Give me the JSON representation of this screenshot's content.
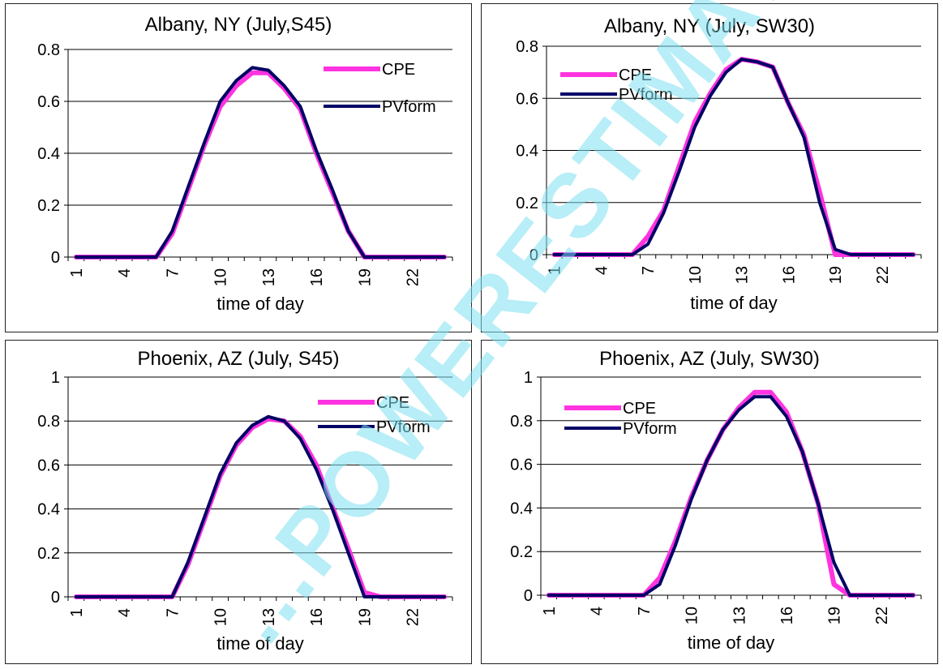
{
  "colors": {
    "cpe": "#ff33e0",
    "pvform": "#000066",
    "background": "#ffffff",
    "watermark": "#7ee0f0"
  },
  "watermark": {
    "text": "...POWERESTIMATOR"
  },
  "chart_data": [
    {
      "type": "line",
      "title": "Albany, NY (July,S45)",
      "xlabel": "time of day",
      "ylabel": "",
      "x": [
        1,
        2,
        3,
        4,
        5,
        6,
        7,
        8,
        9,
        10,
        11,
        12,
        13,
        14,
        15,
        16,
        17,
        18,
        19,
        20,
        21,
        22,
        23,
        24
      ],
      "xticks": [
        "1",
        "4",
        "7",
        "10",
        "13",
        "16",
        "19",
        "22"
      ],
      "ylim": [
        0,
        0.8
      ],
      "yticks": [
        "0",
        "0.2",
        "0.4",
        "0.6",
        "0.8"
      ],
      "grid": true,
      "legend_position": "top-right",
      "series": [
        {
          "name": "CPE",
          "values": [
            0,
            0,
            0,
            0,
            0,
            0,
            0.09,
            0.26,
            0.43,
            0.58,
            0.66,
            0.71,
            0.71,
            0.65,
            0.57,
            0.4,
            0.25,
            0.1,
            0,
            0,
            0,
            0,
            0,
            0
          ]
        },
        {
          "name": "PVform",
          "values": [
            0,
            0,
            0,
            0,
            0,
            0,
            0.1,
            0.27,
            0.44,
            0.6,
            0.68,
            0.73,
            0.72,
            0.66,
            0.58,
            0.41,
            0.26,
            0.1,
            0,
            0,
            0,
            0,
            0,
            0
          ]
        }
      ]
    },
    {
      "type": "line",
      "title": "Albany, NY (July, SW30)",
      "xlabel": "time of day",
      "ylabel": "",
      "x": [
        1,
        2,
        3,
        4,
        5,
        6,
        7,
        8,
        9,
        10,
        11,
        12,
        13,
        14,
        15,
        16,
        17,
        18,
        19,
        20,
        21,
        22,
        23,
        24
      ],
      "xticks": [
        "1",
        "4",
        "7",
        "10",
        "13",
        "16",
        "19",
        "22"
      ],
      "ylim": [
        0,
        0.8
      ],
      "yticks": [
        "0",
        "0.2",
        "0.4",
        "0.6",
        "0.8"
      ],
      "grid": true,
      "legend_position": "top-left",
      "series": [
        {
          "name": "CPE",
          "values": [
            0,
            0,
            0,
            0,
            0,
            0,
            0.07,
            0.17,
            0.34,
            0.51,
            0.62,
            0.71,
            0.75,
            0.74,
            0.72,
            0.58,
            0.46,
            0.24,
            0,
            0,
            0,
            0,
            0,
            0
          ]
        },
        {
          "name": "PVform",
          "values": [
            0,
            0,
            0,
            0,
            0,
            0,
            0.04,
            0.16,
            0.32,
            0.49,
            0.61,
            0.7,
            0.75,
            0.74,
            0.72,
            0.58,
            0.45,
            0.2,
            0.02,
            0,
            0,
            0,
            0,
            0
          ]
        }
      ]
    },
    {
      "type": "line",
      "title": "Phoenix, AZ (July, S45)",
      "xlabel": "time of day",
      "ylabel": "",
      "x": [
        1,
        2,
        3,
        4,
        5,
        6,
        7,
        8,
        9,
        10,
        11,
        12,
        13,
        14,
        15,
        16,
        17,
        18,
        19,
        20,
        21,
        22,
        23,
        24
      ],
      "xticks": [
        "1",
        "4",
        "7",
        "10",
        "13",
        "16",
        "19",
        "22"
      ],
      "ylim": [
        0,
        1
      ],
      "yticks": [
        "0",
        "0.2",
        "0.4",
        "0.6",
        "0.8",
        "1"
      ],
      "grid": true,
      "legend_position": "top-right",
      "series": [
        {
          "name": "CPE",
          "values": [
            0,
            0,
            0,
            0,
            0,
            0,
            0,
            0.15,
            0.35,
            0.55,
            0.69,
            0.77,
            0.81,
            0.8,
            0.73,
            0.6,
            0.41,
            0.22,
            0.02,
            0,
            0,
            0,
            0,
            0
          ]
        },
        {
          "name": "PVform",
          "values": [
            0,
            0,
            0,
            0,
            0,
            0,
            0,
            0.16,
            0.36,
            0.56,
            0.7,
            0.78,
            0.82,
            0.8,
            0.72,
            0.58,
            0.4,
            0.2,
            0,
            0,
            0,
            0,
            0,
            0
          ]
        }
      ]
    },
    {
      "type": "line",
      "title": "Phoenix, AZ (July, SW30)",
      "xlabel": "time of day",
      "ylabel": "",
      "x": [
        1,
        2,
        3,
        4,
        5,
        6,
        7,
        8,
        9,
        10,
        11,
        12,
        13,
        14,
        15,
        16,
        17,
        18,
        19,
        20,
        21,
        22,
        23,
        24
      ],
      "xticks": [
        "1",
        "4",
        "7",
        "10",
        "13",
        "16",
        "19",
        "22"
      ],
      "ylim": [
        0,
        1
      ],
      "yticks": [
        "0",
        "0.2",
        "0.4",
        "0.6",
        "0.8",
        "1"
      ],
      "grid": true,
      "legend_position": "top-left",
      "series": [
        {
          "name": "CPE",
          "values": [
            0,
            0,
            0,
            0,
            0,
            0,
            0,
            0.08,
            0.25,
            0.45,
            0.62,
            0.76,
            0.86,
            0.93,
            0.93,
            0.84,
            0.66,
            0.42,
            0.05,
            0,
            0,
            0,
            0,
            0
          ]
        },
        {
          "name": "PVform",
          "values": [
            0,
            0,
            0,
            0,
            0,
            0,
            0,
            0.05,
            0.23,
            0.44,
            0.62,
            0.76,
            0.85,
            0.91,
            0.91,
            0.82,
            0.66,
            0.42,
            0.15,
            0,
            0,
            0,
            0,
            0
          ]
        }
      ]
    }
  ]
}
